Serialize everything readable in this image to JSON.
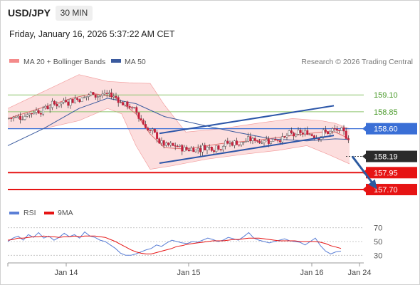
{
  "header": {
    "symbol": "USD/JPY",
    "timeframe": "30 MIN",
    "datetime": "Friday, January 16, 2026 5:37:22 AM CET"
  },
  "legend": {
    "ma20": "MA 20 + Bollinger Bands",
    "ma50": "MA 50",
    "copyright": "Research © 2026 Trading Central",
    "rsi": "RSI",
    "rsi_ma": "9MA"
  },
  "colors": {
    "candle_up": "#ffffff",
    "candle_down": "#c41e3a",
    "bollinger_fill": "#fbd3d3",
    "ma20": "#e07070",
    "ma50": "#3a5a9e",
    "green_level": "#8dc56e",
    "blue_level": "#3a6fd6",
    "red_level": "#e61414",
    "channel": "#2c56a8",
    "arrow": "#2c5aa0",
    "rsi": "#5b7fd6",
    "rsi_ma": "#e61414"
  },
  "chart_data": [
    {
      "type": "candlestick",
      "ylim": [
        157.5,
        159.45
      ],
      "x_labels": [
        "Jan 14",
        "Jan 15",
        "Jan 16",
        "Jan 24"
      ],
      "levels": [
        {
          "value": 159.1,
          "label": "159.10",
          "style": "green-line"
        },
        {
          "value": 158.85,
          "label": "158.85",
          "style": "green-line"
        },
        {
          "value": 158.6,
          "label": "158.60",
          "style": "blue-box"
        },
        {
          "value": 158.19,
          "label": "158.19",
          "style": "current-price"
        },
        {
          "value": 157.95,
          "label": "157.95",
          "style": "red-box"
        },
        {
          "value": 157.7,
          "label": "157.70",
          "style": "red-box"
        }
      ],
      "channel": {
        "upper": [
          [
            0.213,
            158.53
          ],
          [
            0.458,
            158.94
          ]
        ],
        "lower": [
          [
            0.213,
            158.09
          ],
          [
            0.458,
            158.5
          ]
        ]
      },
      "forecast_arrow": [
        [
          0.484,
          158.19
        ],
        [
          0.517,
          157.73
        ]
      ],
      "ma50": [
        [
          0,
          158.35
        ],
        [
          0.05,
          158.6
        ],
        [
          0.1,
          158.9
        ],
        [
          0.14,
          159.05
        ],
        [
          0.18,
          158.97
        ],
        [
          0.22,
          158.78
        ],
        [
          0.27,
          158.66
        ],
        [
          0.32,
          158.55
        ],
        [
          0.37,
          158.45
        ],
        [
          0.42,
          158.42
        ],
        [
          0.46,
          158.45
        ],
        [
          0.48,
          158.44
        ]
      ],
      "ma20": [
        [
          0,
          158.75
        ],
        [
          0.03,
          158.85
        ],
        [
          0.06,
          158.95
        ],
        [
          0.09,
          159.05
        ],
        [
          0.12,
          159.12
        ],
        [
          0.15,
          159.07
        ],
        [
          0.18,
          158.82
        ],
        [
          0.2,
          158.52
        ],
        [
          0.22,
          158.32
        ],
        [
          0.25,
          158.3
        ],
        [
          0.3,
          158.38
        ],
        [
          0.35,
          158.43
        ],
        [
          0.4,
          158.5
        ],
        [
          0.44,
          158.55
        ],
        [
          0.46,
          158.55
        ],
        [
          0.48,
          158.45
        ]
      ],
      "bollinger_upper": [
        [
          0,
          158.9
        ],
        [
          0.05,
          159.15
        ],
        [
          0.1,
          159.4
        ],
        [
          0.14,
          159.3
        ],
        [
          0.17,
          159.28
        ],
        [
          0.2,
          159.27
        ],
        [
          0.22,
          158.95
        ],
        [
          0.25,
          158.55
        ],
        [
          0.3,
          158.6
        ],
        [
          0.35,
          158.68
        ],
        [
          0.4,
          158.75
        ],
        [
          0.44,
          158.72
        ],
        [
          0.46,
          158.68
        ],
        [
          0.48,
          158.6
        ]
      ],
      "bollinger_lower": [
        [
          0,
          158.6
        ],
        [
          0.05,
          158.6
        ],
        [
          0.1,
          158.72
        ],
        [
          0.14,
          158.9
        ],
        [
          0.16,
          158.82
        ],
        [
          0.18,
          158.35
        ],
        [
          0.2,
          158.0
        ],
        [
          0.23,
          158.05
        ],
        [
          0.28,
          158.15
        ],
        [
          0.33,
          158.22
        ],
        [
          0.38,
          158.28
        ],
        [
          0.42,
          158.35
        ],
        [
          0.45,
          158.22
        ],
        [
          0.48,
          158.08
        ]
      ]
    },
    {
      "type": "line",
      "title": "RSI",
      "ylim": [
        20,
        80
      ],
      "y_ticks": [
        70,
        50,
        30
      ],
      "series": [
        {
          "name": "RSI",
          "values": [
            50,
            55,
            58,
            52,
            60,
            56,
            63,
            55,
            58,
            52,
            56,
            62,
            57,
            60,
            55,
            64,
            58,
            56,
            52,
            50,
            45,
            40,
            33,
            30,
            30,
            32,
            35,
            38,
            40,
            45,
            43,
            48,
            52,
            50,
            48,
            47,
            50,
            49,
            52,
            55,
            53,
            50,
            52,
            56,
            54,
            52,
            57,
            63,
            55,
            52,
            50,
            48,
            50,
            52,
            54,
            51,
            50,
            49,
            45,
            50,
            55,
            44,
            36,
            32,
            35,
            36
          ]
        },
        {
          "name": "9MA",
          "values": [
            52,
            53,
            55,
            55,
            56,
            57,
            57,
            58,
            57,
            57,
            56,
            57,
            57,
            58,
            57,
            58,
            58,
            58,
            57,
            56,
            53,
            50,
            46,
            42,
            38,
            35,
            33,
            32,
            32,
            34,
            36,
            38,
            40,
            43,
            44,
            46,
            47,
            48,
            49,
            50,
            51,
            51,
            51,
            52,
            53,
            53,
            54,
            55,
            55,
            55,
            54,
            53,
            52,
            51,
            51,
            51,
            51,
            50,
            50,
            50,
            50,
            49,
            47,
            44,
            42,
            40
          ]
        }
      ]
    }
  ]
}
